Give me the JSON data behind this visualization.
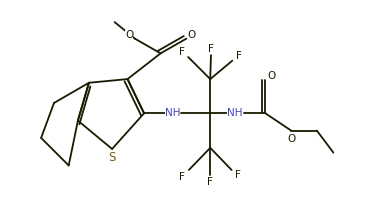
{
  "bg_color": "#ffffff",
  "bond_color": "#1a1a00",
  "atom_color": "#1a1a00",
  "N_color": "#4444bb",
  "S_color": "#7a6010",
  "figsize": [
    3.69,
    2.17
  ],
  "dpi": 100,
  "lw": 1.3,
  "fontsize": 7.5,
  "xlim": [
    0.0,
    10.0
  ],
  "ylim": [
    0.0,
    5.5
  ]
}
